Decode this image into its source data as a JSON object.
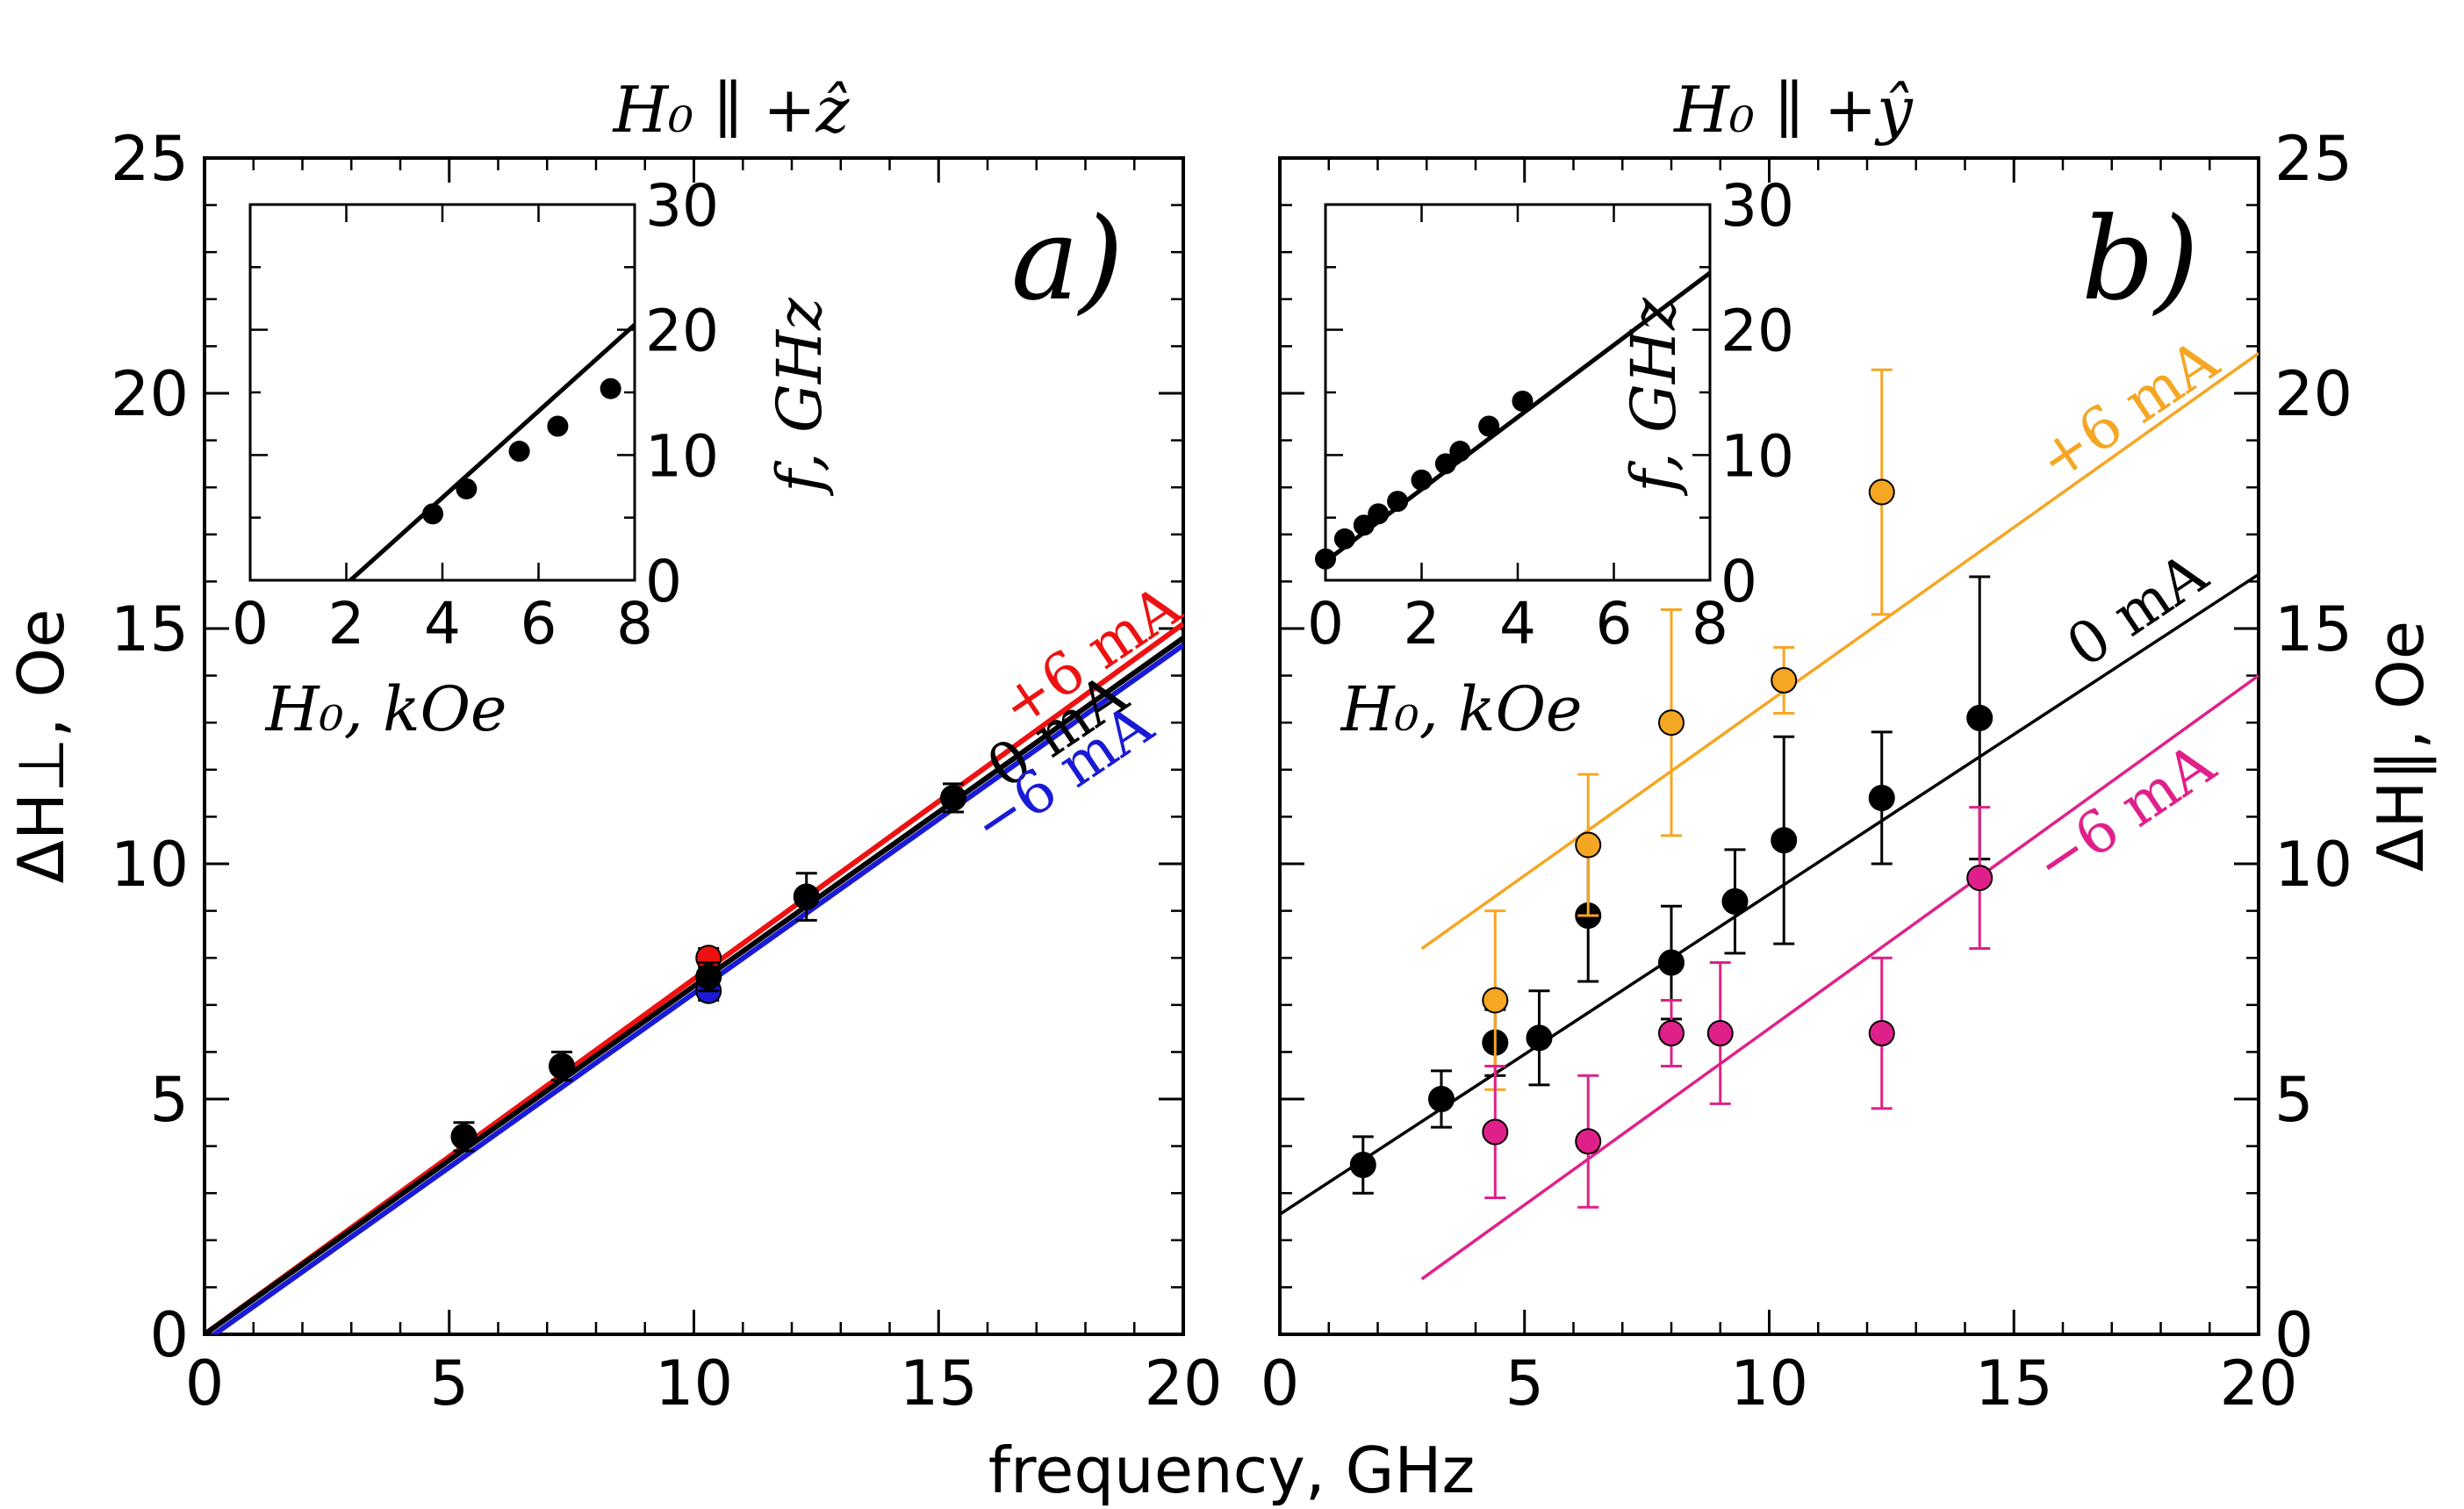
{
  "figure": {
    "xlabel": "frequency, GHz"
  },
  "chart_data": [
    {
      "type": "scatter",
      "panel_letter": "a)",
      "title": "H₀ ∥ +ẑ",
      "title_color": "#000000",
      "xlabel": "frequency, GHz",
      "ylabel": "ΔH⊥, Oe",
      "xlim": [
        0,
        20
      ],
      "ylim": [
        0,
        25
      ],
      "xticks": [
        0,
        5,
        10,
        15,
        20
      ],
      "yticks": [
        0,
        5,
        10,
        15,
        20,
        25
      ],
      "series": [
        {
          "name": "0 mA",
          "color": "#000000",
          "fit": {
            "slope": 0.74,
            "intercept": 0.0,
            "x_range": [
              0,
              20
            ]
          },
          "points": [
            {
              "x": 5.3,
              "y": 4.2,
              "err": 0.3
            },
            {
              "x": 7.3,
              "y": 5.7,
              "err": 0.3
            },
            {
              "x": 10.3,
              "y": 7.6,
              "err": 0.3
            },
            {
              "x": 12.3,
              "y": 9.3,
              "err": 0.5
            },
            {
              "x": 15.3,
              "y": 11.4,
              "err": 0.3
            }
          ]
        },
        {
          "name": "+6 mA",
          "color": "#ee1111",
          "fit": {
            "slope": 0.755,
            "intercept": 0.0,
            "x_range": [
              0,
              20
            ]
          },
          "points": [
            {
              "x": 10.3,
              "y": 8.0,
              "err": 0.2
            }
          ]
        },
        {
          "name": "−6 mA",
          "color": "#1a1ad6",
          "fit": {
            "slope": 0.74,
            "intercept": -0.15,
            "x_range": [
              0,
              20
            ]
          },
          "points": [
            {
              "x": 10.3,
              "y": 7.3,
              "err": 0.2
            }
          ]
        }
      ],
      "line_labels": [
        "+6 mA",
        "0 mA",
        "−6 mA"
      ],
      "inset": {
        "xlabel": "H₀, kOe",
        "ylabel": "f, GHz",
        "xlim": [
          0,
          8
        ],
        "ylim": [
          0,
          30
        ],
        "xticks": [
          0,
          2,
          4,
          6,
          8
        ],
        "yticks": [
          0,
          10,
          20,
          30
        ],
        "fit": {
          "slope": 3.45,
          "intercept": -7.2
        },
        "points": [
          {
            "x": 3.8,
            "y": 5.3
          },
          {
            "x": 4.5,
            "y": 7.3
          },
          {
            "x": 5.6,
            "y": 10.3
          },
          {
            "x": 6.4,
            "y": 12.3
          },
          {
            "x": 7.5,
            "y": 15.3
          }
        ]
      }
    },
    {
      "type": "scatter",
      "panel_letter": "b)",
      "title": "H₀ ∥ +ŷ",
      "title_color": "#ee1111",
      "xlabel": "frequency, GHz",
      "ylabel": "ΔH∥, Oe",
      "xlim": [
        0,
        20
      ],
      "ylim": [
        0,
        25
      ],
      "xticks": [
        0,
        5,
        10,
        15,
        20
      ],
      "yticks": [
        0,
        5,
        10,
        15,
        20,
        25
      ],
      "series": [
        {
          "name": "0 mA",
          "color": "#000000",
          "fit": {
            "slope": 0.68,
            "intercept": 2.55,
            "x_range": [
              0,
              20
            ]
          },
          "points": [
            {
              "x": 1.7,
              "y": 3.6,
              "err": 0.6
            },
            {
              "x": 3.3,
              "y": 5.0,
              "err": 0.6
            },
            {
              "x": 4.4,
              "y": 6.2,
              "err": 0.7
            },
            {
              "x": 5.3,
              "y": 6.3,
              "err": 1.0
            },
            {
              "x": 6.3,
              "y": 8.9,
              "err": 1.4
            },
            {
              "x": 8.0,
              "y": 7.9,
              "err": 1.2
            },
            {
              "x": 9.3,
              "y": 9.2,
              "err": 1.1
            },
            {
              "x": 10.3,
              "y": 10.5,
              "err": 2.2
            },
            {
              "x": 12.3,
              "y": 11.4,
              "err": 1.4
            },
            {
              "x": 14.3,
              "y": 13.1,
              "err": 3.0
            }
          ]
        },
        {
          "name": "+6 mA",
          "color": "#f5a623",
          "fit": {
            "slope": 0.74,
            "intercept": 6.05,
            "x_range": [
              2.9,
              20
            ]
          },
          "points": [
            {
              "x": 4.4,
              "y": 7.1,
              "err": 1.9
            },
            {
              "x": 6.3,
              "y": 10.4,
              "err": 1.5
            },
            {
              "x": 8.0,
              "y": 13.0,
              "err": 2.4
            },
            {
              "x": 10.3,
              "y": 13.9,
              "err": 0.7
            },
            {
              "x": 12.3,
              "y": 17.9,
              "err": 2.6
            }
          ]
        },
        {
          "name": "−6 mA",
          "color": "#e0208a",
          "fit": {
            "slope": 0.75,
            "intercept": -1.0,
            "x_range": [
              2.9,
              20
            ]
          },
          "points": [
            {
              "x": 4.4,
              "y": 4.3,
              "err": 1.4
            },
            {
              "x": 6.3,
              "y": 4.1,
              "err": 1.4
            },
            {
              "x": 8.0,
              "y": 6.4,
              "err": 0.7
            },
            {
              "x": 9.0,
              "y": 6.4,
              "err": 1.5
            },
            {
              "x": 12.3,
              "y": 6.4,
              "err": 1.6
            },
            {
              "x": 14.3,
              "y": 9.7,
              "err": 1.5
            }
          ]
        }
      ],
      "line_labels": [
        "+6 mA",
        "0 mA",
        "−6 mA"
      ],
      "inset": {
        "xlabel": "H₀, kOe",
        "ylabel": "f, GHz",
        "xlim": [
          0,
          8
        ],
        "ylim": [
          0,
          30
        ],
        "xticks": [
          0,
          2,
          4,
          6,
          8
        ],
        "yticks": [
          0,
          10,
          20,
          30
        ],
        "fit": {
          "slope": 2.88,
          "intercept": 1.5
        },
        "points": [
          {
            "x": 0.0,
            "y": 1.7
          },
          {
            "x": 0.4,
            "y": 3.3
          },
          {
            "x": 0.8,
            "y": 4.4
          },
          {
            "x": 1.1,
            "y": 5.3
          },
          {
            "x": 1.5,
            "y": 6.3
          },
          {
            "x": 2.0,
            "y": 8.0
          },
          {
            "x": 2.5,
            "y": 9.3
          },
          {
            "x": 2.8,
            "y": 10.3
          },
          {
            "x": 3.4,
            "y": 12.3
          },
          {
            "x": 4.1,
            "y": 14.3
          }
        ]
      }
    }
  ]
}
